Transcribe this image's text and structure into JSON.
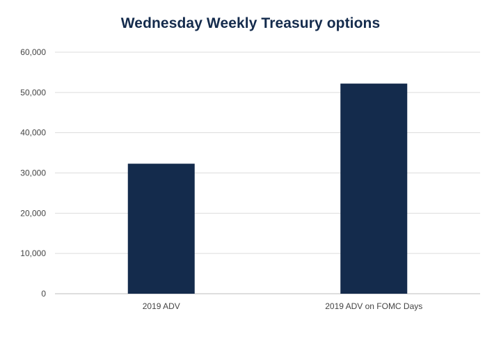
{
  "chart_data": {
    "type": "bar",
    "title": "Wednesday Weekly Treasury options",
    "xlabel": "",
    "ylabel": "",
    "categories": [
      "2019 ADV",
      "2019 ADV on FOMC Days"
    ],
    "values": [
      32300,
      52200
    ],
    "ylim": [
      0,
      60000
    ],
    "yticks": [
      0,
      10000,
      20000,
      30000,
      40000,
      50000,
      60000
    ],
    "ytick_labels": [
      "0",
      "10,000",
      "20,000",
      "30,000",
      "40,000",
      "50,000",
      "60,000"
    ],
    "grid": true,
    "legend": "none",
    "bar_color": "#142b4c"
  }
}
